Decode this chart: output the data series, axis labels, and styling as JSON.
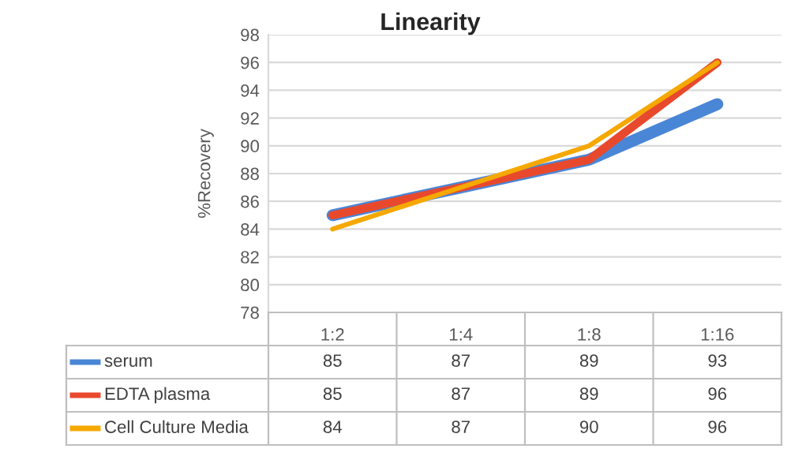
{
  "chart_data": {
    "type": "line",
    "title": "Linearity",
    "ylabel": "%Recovery",
    "categories": [
      "1:2",
      "1:4",
      "1:8",
      "1:16"
    ],
    "series": [
      {
        "name": "serum",
        "color": "#4a86d6",
        "values": [
          85,
          87,
          89,
          93
        ]
      },
      {
        "name": "EDTA plasma",
        "color": "#e8492d",
        "values": [
          85,
          87,
          89,
          96
        ]
      },
      {
        "name": "Cell Culture Media",
        "color": "#f5a800",
        "values": [
          84,
          87,
          90,
          96
        ]
      }
    ],
    "ylim": [
      78,
      98
    ],
    "yticks": [
      78,
      80,
      82,
      84,
      86,
      88,
      90,
      92,
      94,
      96,
      98
    ],
    "grid": "y",
    "legend": "bottom",
    "data_labels": true,
    "marker": "none",
    "line_style": "solid"
  }
}
